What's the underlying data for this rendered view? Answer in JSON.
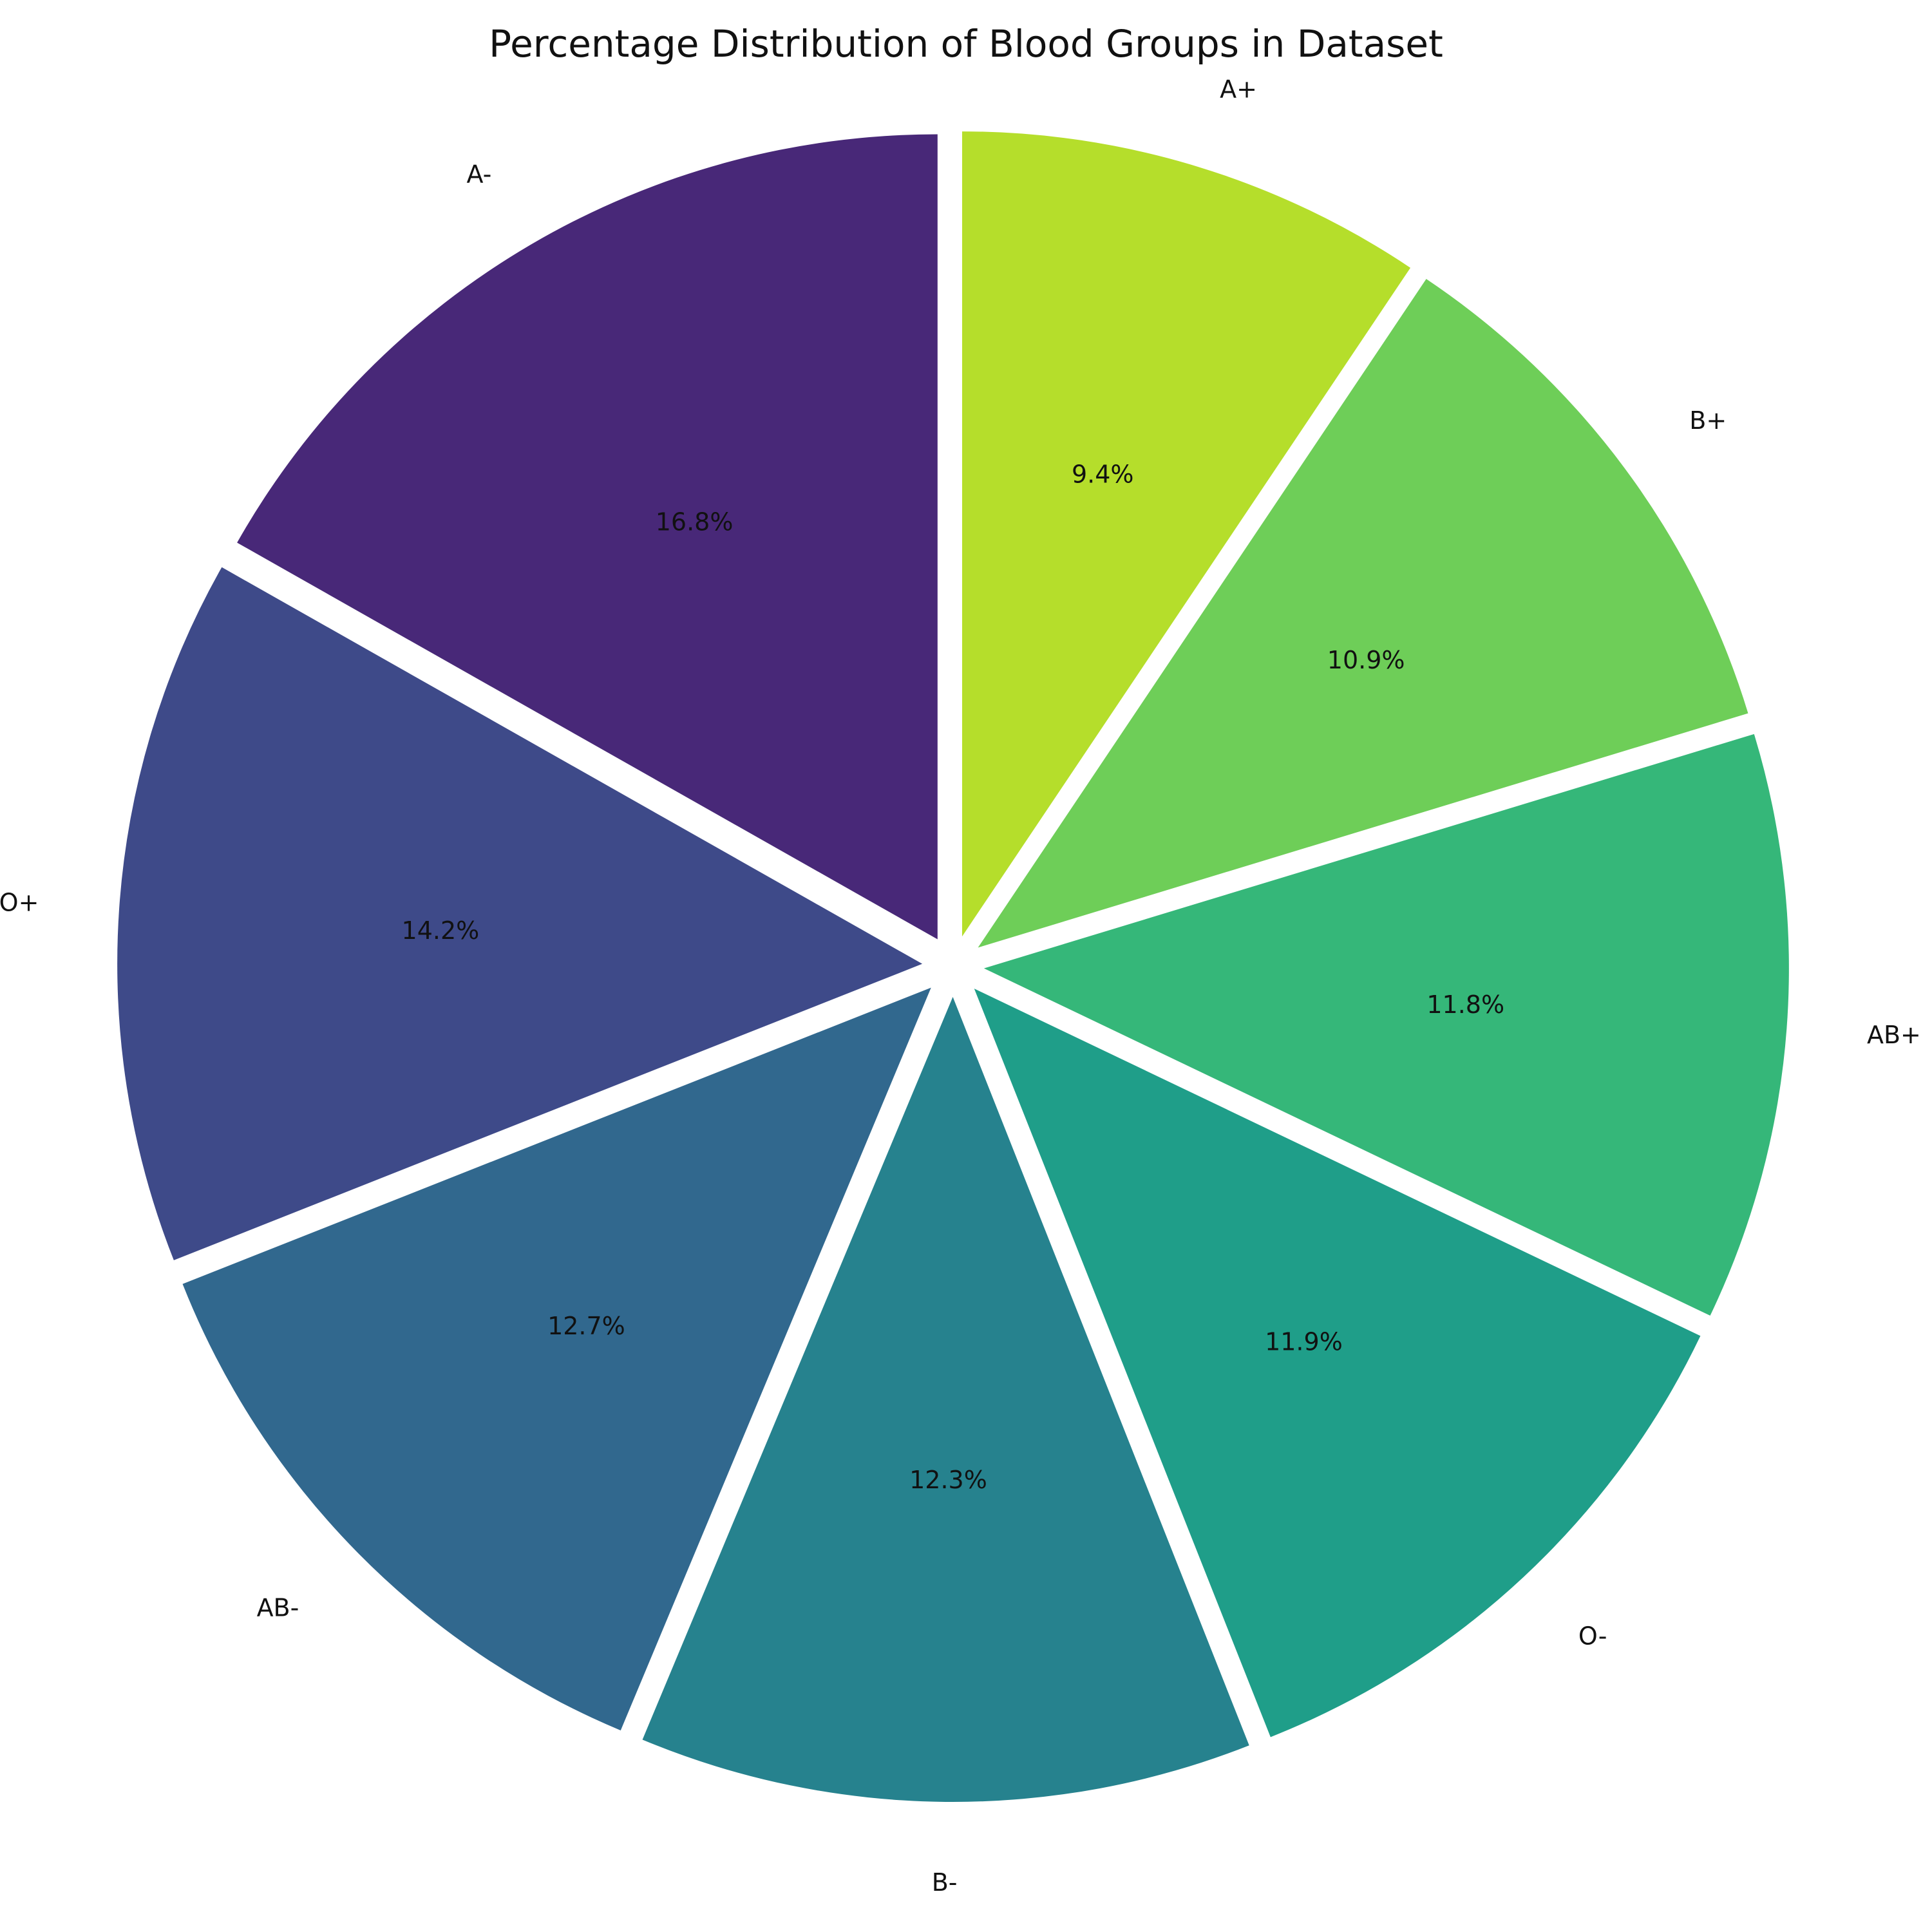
{
  "chart_data": {
    "type": "pie",
    "title": "Percentage Distribution of Blood Groups in Dataset",
    "start_angle_deg": 90,
    "direction": "clockwise",
    "explode_all": true,
    "slices": [
      {
        "label": "A+",
        "value": 9.4,
        "label_text": "9.4%",
        "color": "#b5de2b"
      },
      {
        "label": "B+",
        "value": 10.9,
        "label_text": "10.9%",
        "color": "#6ece58"
      },
      {
        "label": "AB+",
        "value": 11.8,
        "label_text": "11.8%",
        "color": "#35b779"
      },
      {
        "label": "O-",
        "value": 11.9,
        "label_text": "11.9%",
        "color": "#1f9e89"
      },
      {
        "label": "B-",
        "value": 12.3,
        "label_text": "12.3%",
        "color": "#26828e"
      },
      {
        "label": "AB-",
        "value": 12.7,
        "label_text": "12.7%",
        "color": "#31688e"
      },
      {
        "label": "O+",
        "value": 14.2,
        "label_text": "14.2%",
        "color": "#3e4a89"
      },
      {
        "label": "A-",
        "value": 16.8,
        "label_text": "16.8%",
        "color": "#482878"
      }
    ]
  }
}
